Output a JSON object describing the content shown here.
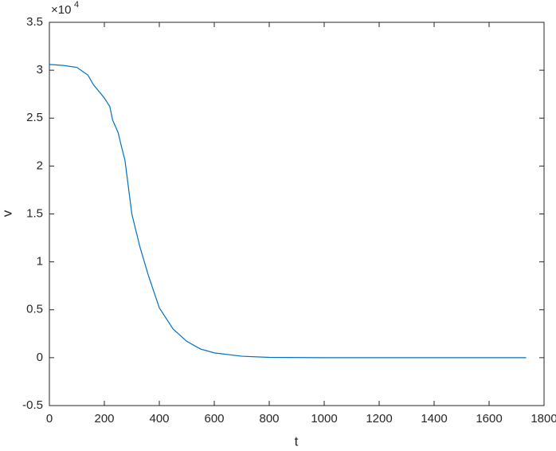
{
  "chart_data": {
    "type": "line",
    "xlabel": "t",
    "ylabel": "v",
    "y_multiplier": {
      "base": "×10",
      "exponent": "4"
    },
    "x": [
      0,
      50,
      100,
      140,
      160,
      200,
      220,
      230,
      250,
      260,
      275,
      300,
      330,
      360,
      400,
      450,
      500,
      550,
      600,
      700,
      800,
      1000,
      1200,
      1400,
      1600,
      1735
    ],
    "series": [
      {
        "color": "#0072bd",
        "values": [
          3.06,
          3.05,
          3.03,
          2.95,
          2.85,
          2.71,
          2.62,
          2.48,
          2.35,
          2.23,
          2.06,
          1.5,
          1.15,
          0.86,
          0.52,
          0.3,
          0.17,
          0.09,
          0.05,
          0.015,
          0.003,
          0,
          0,
          0,
          0,
          0
        ]
      }
    ],
    "xlim": [
      0,
      1800
    ],
    "xticks": [
      0,
      200,
      400,
      600,
      800,
      1000,
      1200,
      1400,
      1600,
      1800
    ],
    "ylim": [
      -0.5,
      3.5
    ],
    "yticks": [
      -0.5,
      0,
      0.5,
      1,
      1.5,
      2,
      2.5,
      3,
      3.5
    ],
    "grid": false
  }
}
